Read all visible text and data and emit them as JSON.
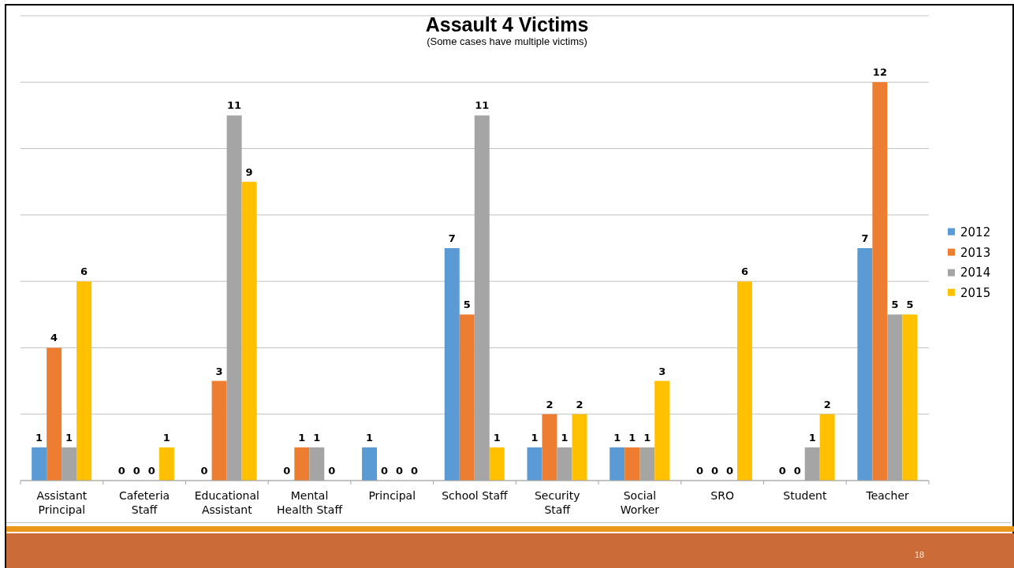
{
  "chart_data": {
    "type": "bar",
    "title": "Assault 4 Victims",
    "subtitle": "(Some cases have multiple victims)",
    "categories": [
      "Assistant Principal",
      "Cafeteria Staff",
      "Educational Assistant",
      "Mental Health Staff",
      "Principal",
      "School Staff",
      "Security Staff",
      "Social Worker",
      "SRO",
      "Student",
      "Teacher"
    ],
    "series": [
      {
        "name": "2012",
        "color": "#5b9bd5",
        "values": [
          1,
          0,
          0,
          0,
          1,
          7,
          1,
          1,
          0,
          0,
          7
        ]
      },
      {
        "name": "2013",
        "color": "#ed7d31",
        "values": [
          4,
          0,
          3,
          1,
          0,
          5,
          2,
          1,
          0,
          0,
          12
        ]
      },
      {
        "name": "2014",
        "color": "#a5a5a5",
        "values": [
          1,
          0,
          11,
          1,
          0,
          11,
          1,
          1,
          0,
          1,
          5
        ]
      },
      {
        "name": "2015",
        "color": "#ffc000",
        "values": [
          6,
          1,
          9,
          0,
          0,
          1,
          2,
          3,
          6,
          2,
          5
        ]
      }
    ],
    "ylim": [
      0,
      14
    ],
    "yticks": [
      0,
      2,
      4,
      6,
      8,
      10,
      12,
      14
    ],
    "grid": "y",
    "legend": "right",
    "tick_labels": "x",
    "data_labels": true,
    "annotations": [
      "18"
    ]
  }
}
